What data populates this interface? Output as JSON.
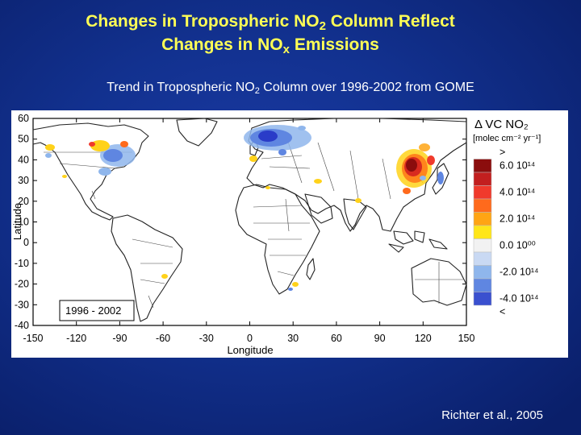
{
  "slide": {
    "title_line1_a": "Changes in Tropospheric NO",
    "title_line1_sub": "2",
    "title_line1_b": " Column Reflect",
    "title_line2_a": "Changes in NO",
    "title_line2_sub": "x",
    "title_line2_b": " Emissions",
    "subtitle_a": "Trend in Tropospheric NO",
    "subtitle_sub": "2",
    "subtitle_b": " Column over 1996-2002 from GOME",
    "credit": "Richter et al., 2005"
  },
  "map": {
    "x_label": "Longitude",
    "y_label": "Latitude",
    "x_ticks": [
      "-150",
      "-120",
      "-90",
      "-60",
      "-30",
      "0",
      "30",
      "60",
      "90",
      "120",
      "150"
    ],
    "y_ticks": [
      "60",
      "50",
      "40",
      "30",
      "20",
      "10",
      "0",
      "-10",
      "-20",
      "-30",
      "-40"
    ],
    "period_label": "1996 - 2002"
  },
  "legend": {
    "title": "Δ VC NO₂",
    "units": "[molec cm⁻² yr⁻¹]",
    "entries": [
      {
        "label": ">",
        "color": "#ffffff"
      },
      {
        "label": "6.0 10¹⁴",
        "color": "#8b0d0d"
      },
      {
        "label": "",
        "color": "#c21f1f"
      },
      {
        "label": "4.0 10¹⁴",
        "color": "#f03a2c"
      },
      {
        "label": "",
        "color": "#ff6a1c"
      },
      {
        "label": "2.0 10¹⁴",
        "color": "#ffa514"
      },
      {
        "label": "",
        "color": "#ffe619"
      },
      {
        "label": "0.0 10⁰⁰",
        "color": "#f2f2f2"
      },
      {
        "label": "",
        "color": "#c9d9f3"
      },
      {
        "label": "-2.0 10¹⁴",
        "color": "#8fb6ec"
      },
      {
        "label": "",
        "color": "#5f86e1"
      },
      {
        "label": "-4.0 10¹⁴",
        "color": "#3a50cf"
      },
      {
        "label": "<",
        "color": "#ffffff"
      }
    ]
  },
  "colors": {
    "title": "#ffff55",
    "increase_strong": "#a0141a",
    "increase": "#f04030",
    "increase_weak": "#ffd21a",
    "decrease": "#5f86e1",
    "decrease_strong": "#2a3cc8"
  }
}
